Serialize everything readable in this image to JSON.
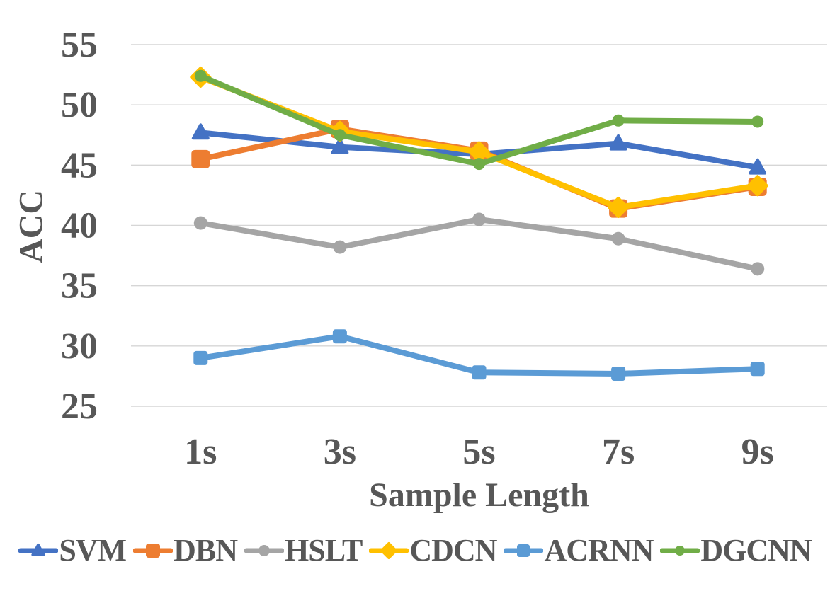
{
  "chart_data": {
    "type": "line",
    "title": "",
    "xlabel": "Sample Length",
    "ylabel": "ACC",
    "categories": [
      "1s",
      "3s",
      "5s",
      "7s",
      "9s"
    ],
    "ylim": [
      25,
      55
    ],
    "yticks": [
      55,
      50,
      45,
      40,
      35,
      30,
      25
    ],
    "grid": true,
    "gridline_color": "#d6d6d6",
    "text_color": "#575757",
    "legend_position": "bottom",
    "series": [
      {
        "name": "SVM",
        "color": "#4472C4",
        "marker": "triangle",
        "values": [
          47.7,
          46.5,
          45.9,
          46.8,
          44.8
        ]
      },
      {
        "name": "DBN",
        "color": "#ED7D31",
        "marker": "square",
        "values": [
          45.5,
          48.0,
          46.2,
          41.4,
          43.2
        ]
      },
      {
        "name": "HSLT",
        "color": "#A5A5A5",
        "marker": "circle",
        "values": [
          40.2,
          38.2,
          40.5,
          38.9,
          36.4
        ]
      },
      {
        "name": "CDCN",
        "color": "#FFC000",
        "marker": "diamond",
        "values": [
          52.3,
          47.8,
          46.1,
          41.5,
          43.3
        ]
      },
      {
        "name": "ACRNN",
        "color": "#5B9BD5",
        "marker": "square",
        "values": [
          29.0,
          30.8,
          27.8,
          27.7,
          28.1
        ]
      },
      {
        "name": "DGCNN",
        "color": "#70AD47",
        "marker": "circle",
        "values": [
          52.4,
          47.5,
          45.1,
          48.7,
          48.6
        ]
      }
    ]
  }
}
